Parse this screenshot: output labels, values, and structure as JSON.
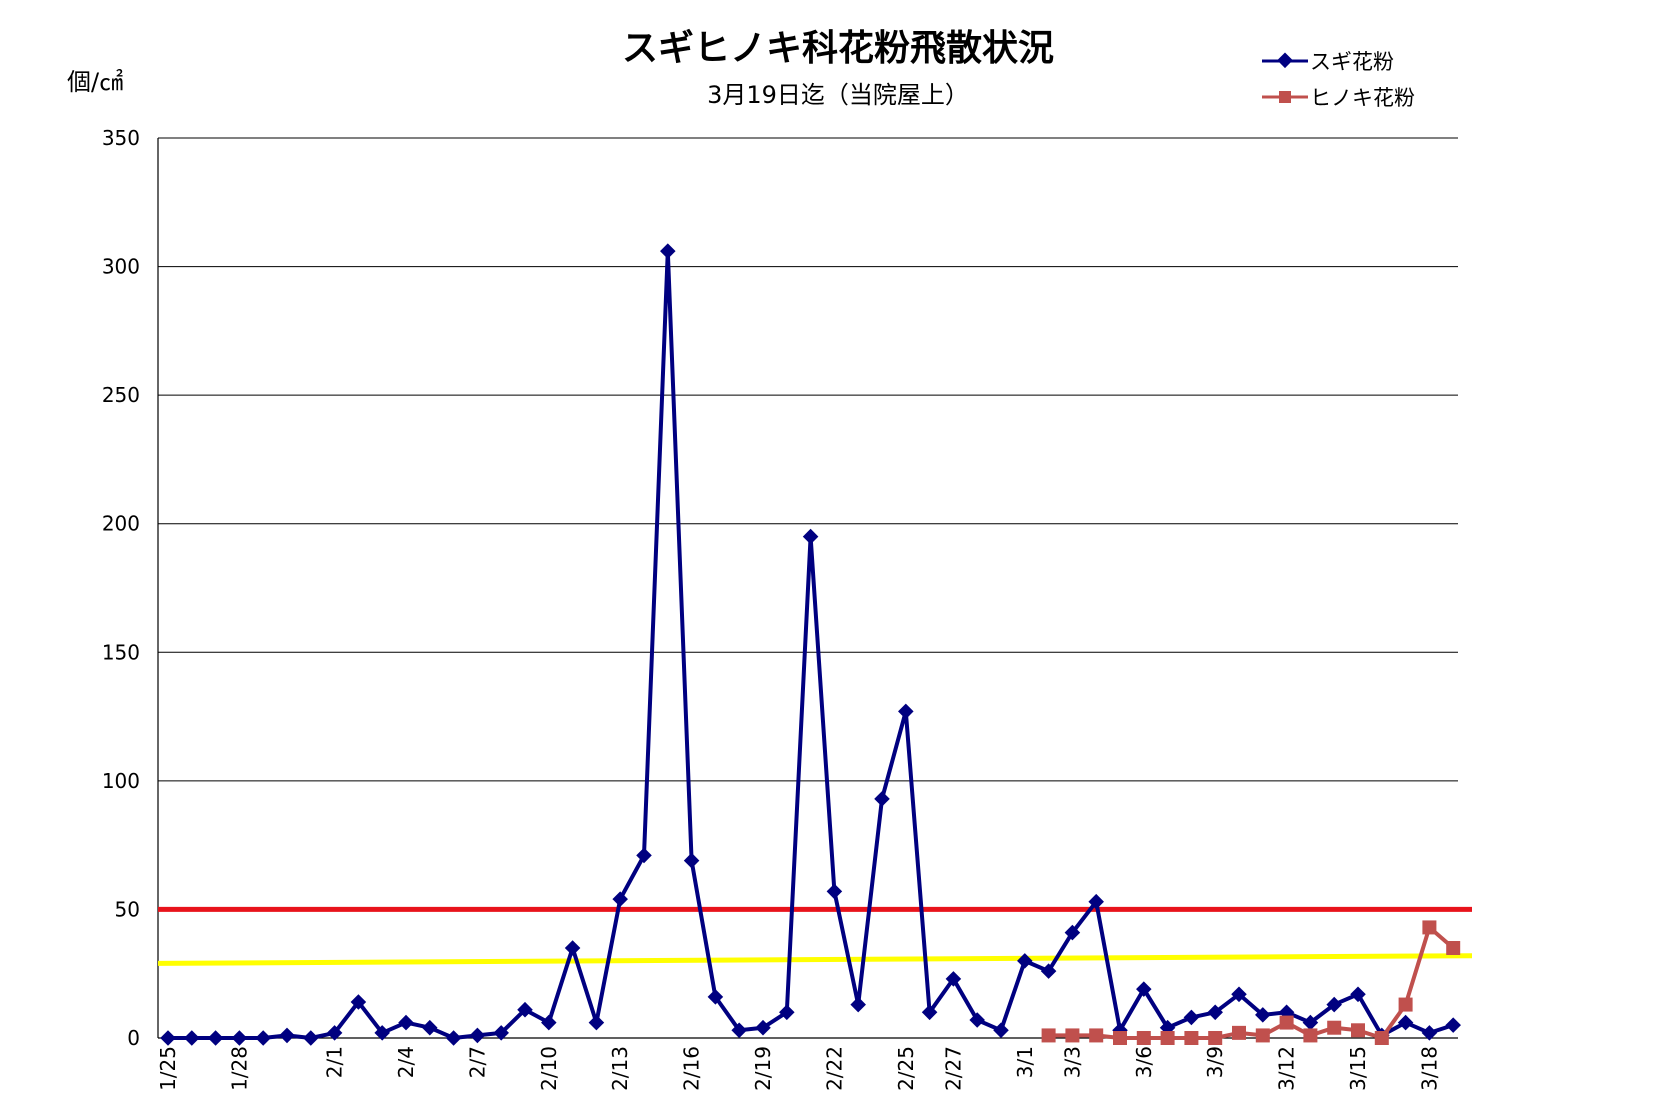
{
  "chart_data": {
    "type": "line",
    "title": "スギヒノキ科花粉飛散状況",
    "subtitle": "3月19日迄（当院屋上）",
    "ylabel": "個/㎠",
    "ylim": [
      0,
      350
    ],
    "yticks": [
      0,
      50,
      100,
      150,
      200,
      250,
      300,
      350
    ],
    "grid": true,
    "legend_position": "top-right",
    "x_start": "1/25",
    "xtick_labels": [
      {
        "i": 0,
        "label": "1/25"
      },
      {
        "i": 3,
        "label": "1/28"
      },
      {
        "i": 7,
        "label": "2/1"
      },
      {
        "i": 10,
        "label": "2/4"
      },
      {
        "i": 13,
        "label": "2/7"
      },
      {
        "i": 16,
        "label": "2/10"
      },
      {
        "i": 19,
        "label": "2/13"
      },
      {
        "i": 22,
        "label": "2/16"
      },
      {
        "i": 25,
        "label": "2/19"
      },
      {
        "i": 28,
        "label": "2/22"
      },
      {
        "i": 31,
        "label": "2/25"
      },
      {
        "i": 33,
        "label": "2/27"
      },
      {
        "i": 36,
        "label": "3/1"
      },
      {
        "i": 38,
        "label": "3/3"
      },
      {
        "i": 41,
        "label": "3/6"
      },
      {
        "i": 44,
        "label": "3/9"
      },
      {
        "i": 47,
        "label": "3/12"
      },
      {
        "i": 50,
        "label": "3/15"
      },
      {
        "i": 53,
        "label": "3/18"
      }
    ],
    "series": [
      {
        "name": "スギ花粉",
        "color": "#000080",
        "marker": "diamond",
        "start_index": 0,
        "values": [
          0,
          0,
          0,
          0,
          0,
          1,
          0,
          2,
          14,
          2,
          6,
          4,
          0,
          1,
          2,
          11,
          6,
          35,
          6,
          54,
          71,
          306,
          69,
          16,
          3,
          4,
          10,
          195,
          57,
          13,
          93,
          127,
          10,
          23,
          7,
          3,
          30,
          26,
          41,
          53,
          3,
          19,
          4,
          8,
          10,
          17,
          9,
          10,
          6,
          13,
          17,
          1,
          6,
          2,
          5
        ]
      },
      {
        "name": "ヒノキ花粉",
        "color": "#C0504D",
        "marker": "square",
        "start_index": 37,
        "values": [
          1,
          1,
          1,
          0,
          0,
          0,
          0,
          0,
          2,
          1,
          6,
          1,
          4,
          3,
          0,
          13,
          43,
          35
        ]
      }
    ],
    "reference_lines": [
      {
        "value": 50,
        "value_end": 50,
        "color": "#e8131b"
      },
      {
        "value": 29,
        "value_end": 32,
        "color": "#ffff00"
      }
    ]
  }
}
